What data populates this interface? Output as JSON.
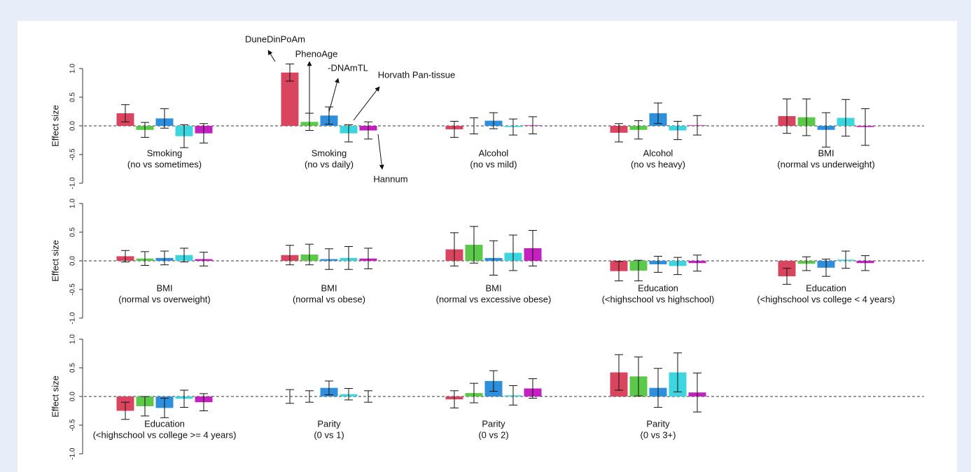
{
  "chart_data": [
    {
      "type": "bar",
      "ylabel": "Effect size",
      "ylim": [
        -1,
        1
      ],
      "yticks": [
        {
          "value": -1,
          "label": "-1.0"
        },
        {
          "value": -0.5,
          "label": "-0.5"
        },
        {
          "value": 0,
          "label": "0.0"
        },
        {
          "value": 0.5,
          "label": "0.5"
        },
        {
          "value": 1,
          "label": "1.0"
        }
      ],
      "categories": [
        [
          "Smoking",
          "(no vs sometimes)"
        ],
        [
          "Smoking",
          "(no vs daily)"
        ],
        [
          "Alcohol",
          "(no vs mild)"
        ],
        [
          "Alcohol",
          "(no vs heavy)"
        ],
        [
          "BMI",
          "(normal vs underweight)"
        ]
      ],
      "series": [
        {
          "name": "DuneDinPoAm",
          "color": "#d9455f",
          "values": [
            0.22,
            0.93,
            -0.06,
            -0.12,
            0.17
          ],
          "errors": [
            0.15,
            0.15,
            0.14,
            0.16,
            0.3
          ]
        },
        {
          "name": "PhenoAge",
          "color": "#5cc94a",
          "values": [
            -0.07,
            0.07,
            0.0,
            -0.07,
            0.15
          ],
          "errors": [
            0.13,
            0.15,
            0.14,
            0.16,
            0.32
          ]
        },
        {
          "name": "-DNAmTL",
          "color": "#2e8fdc",
          "values": [
            0.13,
            0.18,
            0.09,
            0.22,
            -0.07
          ],
          "errors": [
            0.17,
            0.15,
            0.14,
            0.18,
            0.3
          ]
        },
        {
          "name": "Horvath Pan-tissue",
          "color": "#3dd6e0",
          "values": [
            -0.18,
            -0.13,
            -0.02,
            -0.08,
            0.14
          ],
          "errors": [
            0.2,
            0.15,
            0.14,
            0.16,
            0.32
          ]
        },
        {
          "name": "Hannum",
          "color": "#c41fbf",
          "values": [
            -0.13,
            -0.08,
            0.01,
            0.01,
            -0.02
          ],
          "errors": [
            0.17,
            0.15,
            0.15,
            0.17,
            0.32
          ]
        }
      ]
    },
    {
      "type": "bar",
      "ylabel": "Effect size",
      "ylim": [
        -1,
        1
      ],
      "yticks": [
        {
          "value": -1,
          "label": "-1.0"
        },
        {
          "value": -0.5,
          "label": "-0.5"
        },
        {
          "value": 0,
          "label": "0.0"
        },
        {
          "value": 0.5,
          "label": "0.5"
        },
        {
          "value": 1,
          "label": "1.0"
        }
      ],
      "categories": [
        [
          "BMI",
          "(normal vs overweight)"
        ],
        [
          "BMI",
          "(normal vs obese)"
        ],
        [
          "BMI",
          "(normal vs excessive obese)"
        ],
        [
          "Education",
          "(<highschool vs highschool)"
        ],
        [
          "Education",
          "(<highschool vs college < 4 years)"
        ]
      ],
      "series": [
        {
          "values": [
            0.08,
            0.1,
            0.2,
            -0.18,
            -0.27
          ],
          "errors": [
            0.1,
            0.17,
            0.29,
            0.17,
            0.14
          ]
        },
        {
          "values": [
            0.04,
            0.11,
            0.28,
            -0.17,
            -0.05
          ],
          "errors": [
            0.12,
            0.18,
            0.32,
            0.18,
            0.12
          ]
        },
        {
          "values": [
            0.05,
            0.03,
            0.05,
            -0.06,
            -0.12
          ],
          "errors": [
            0.12,
            0.18,
            0.3,
            0.14,
            0.15
          ]
        },
        {
          "values": [
            0.1,
            0.05,
            0.14,
            -0.09,
            0.02
          ],
          "errors": [
            0.12,
            0.2,
            0.31,
            0.15,
            0.15
          ]
        },
        {
          "values": [
            0.03,
            0.04,
            0.22,
            -0.04,
            -0.04
          ],
          "errors": [
            0.12,
            0.18,
            0.31,
            0.14,
            0.13
          ]
        }
      ]
    },
    {
      "type": "bar",
      "ylabel": "Effect size",
      "ylim": [
        -1,
        1
      ],
      "yticks": [
        {
          "value": -1,
          "label": "-1.0"
        },
        {
          "value": -0.5,
          "label": "-0.5"
        },
        {
          "value": 0,
          "label": "0.0"
        },
        {
          "value": 0.5,
          "label": "0.5"
        },
        {
          "value": 1,
          "label": "1.0"
        }
      ],
      "categories": [
        [
          "Education",
          "(<highschool vs college >= 4 years)"
        ],
        [
          "Parity",
          "(0 vs 1)"
        ],
        [
          "Parity",
          "(0 vs 2)"
        ],
        [
          "Parity",
          "(0 vs 3+)"
        ]
      ],
      "series": [
        {
          "values": [
            -0.25,
            0.0,
            -0.05,
            0.42
          ],
          "errors": [
            0.15,
            0.12,
            0.15,
            0.31
          ]
        },
        {
          "values": [
            -0.17,
            0.0,
            0.06,
            0.35
          ],
          "errors": [
            0.17,
            0.1,
            0.17,
            0.34
          ]
        },
        {
          "values": [
            -0.2,
            0.15,
            0.27,
            0.15
          ],
          "errors": [
            0.17,
            0.12,
            0.18,
            0.34
          ]
        },
        {
          "values": [
            -0.04,
            0.04,
            0.02,
            0.42
          ],
          "errors": [
            0.15,
            0.1,
            0.17,
            0.34
          ]
        },
        {
          "values": [
            -0.1,
            0.0,
            0.14,
            0.07
          ],
          "errors": [
            0.15,
            0.1,
            0.17,
            0.34
          ]
        }
      ]
    }
  ]
}
